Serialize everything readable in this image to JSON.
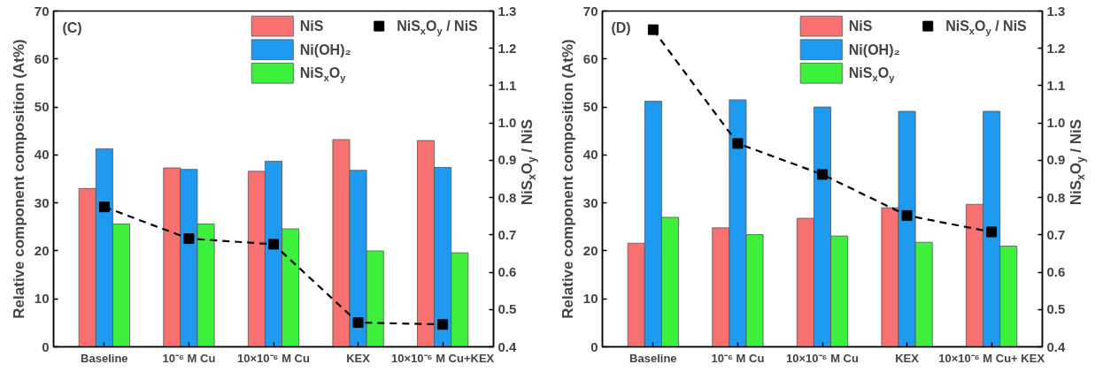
{
  "chart_data": [
    {
      "type": "bar",
      "title": "(C)",
      "ylabel": "Relative component composition (At%)",
      "y2label": "NiS$_{x}$O$_{y}$ / NiS",
      "categories": [
        "Baseline",
        "10⁻⁶ M Cu",
        "10×10⁻⁶ M Cu",
        "KEX",
        "10×10⁻⁶ M Cu+KEX"
      ],
      "series": [
        {
          "name": "NiS",
          "color": "#f87171",
          "values": [
            33.0,
            37.3,
            36.6,
            43.2,
            43.0
          ]
        },
        {
          "name": "Ni(OH)₂",
          "color": "#1e9bf0",
          "values": [
            41.3,
            37.0,
            38.7,
            36.8,
            37.4
          ]
        },
        {
          "name": "NiS$_{x}$O$_{y}$",
          "color": "#3cf03c",
          "values": [
            25.6,
            25.6,
            24.6,
            20.0,
            19.6
          ]
        },
        {
          "name": "NiS$_{x}$O$_{y}$ / NiS",
          "type": "line",
          "axis": "y2",
          "color": "#000000",
          "marker": "square",
          "line_style": "dashed",
          "values": [
            0.775,
            0.69,
            0.675,
            0.465,
            0.46
          ]
        }
      ],
      "ylim": [
        0,
        70
      ],
      "yticks": [
        0,
        10,
        20,
        30,
        40,
        50,
        60,
        70
      ],
      "y2lim": [
        0.4,
        1.3
      ],
      "y2ticks": [
        0.4,
        0.5,
        0.6,
        0.7,
        0.8,
        0.9,
        {
          "value": 1.0,
          "label": "1.0"
        },
        1.1,
        1.2,
        1.3
      ],
      "grid": false,
      "legend": "top"
    },
    {
      "type": "bar",
      "title": "(D)",
      "ylabel": "Relative component composition (At%)",
      "y2label": "NiS$_{x}$O$_{y}$ / NiS",
      "categories": [
        "Baseline",
        "10⁻⁶ M Cu",
        "10×10⁻⁶ M Cu",
        "KEX",
        "10×10⁻⁶ M Cu+ KEX"
      ],
      "series": [
        {
          "name": "NiS",
          "color": "#f87171",
          "values": [
            21.6,
            24.8,
            26.8,
            29.0,
            29.7
          ]
        },
        {
          "name": "Ni(OH)₂",
          "color": "#1e9bf0",
          "values": [
            51.2,
            51.5,
            50.0,
            49.1,
            49.1
          ]
        },
        {
          "name": "NiS$_{x}$O$_{y}$",
          "color": "#3cf03c",
          "values": [
            27.0,
            23.4,
            23.1,
            21.8,
            21.0
          ]
        },
        {
          "name": "NiS$_{x}$O$_{y}$ / NiS",
          "type": "line",
          "axis": "y2",
          "color": "#000000",
          "marker": "square",
          "line_style": "dashed",
          "values": [
            1.25,
            0.945,
            0.862,
            0.752,
            0.708
          ]
        }
      ],
      "ylim": [
        0,
        70
      ],
      "yticks": [
        0,
        10,
        20,
        30,
        40,
        50,
        60,
        70
      ],
      "y2lim": [
        0.4,
        1.3
      ],
      "y2ticks": [
        0.4,
        0.5,
        0.6,
        0.7,
        0.8,
        0.9,
        {
          "value": 1.0,
          "label": "1.0"
        },
        1.1,
        1.2,
        1.3
      ],
      "grid": false,
      "legend": "top"
    }
  ]
}
